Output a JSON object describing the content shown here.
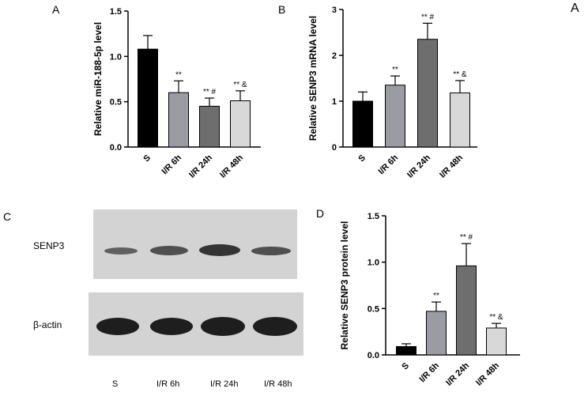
{
  "panel_letters": {
    "a": "A",
    "b": "B",
    "c": "C",
    "d": "D",
    "corner": "A"
  },
  "blot": {
    "row_labels": [
      "SENP3",
      "β-actin"
    ],
    "lane_labels": [
      "S",
      "I/R 6h",
      "I/R 24h",
      "I/R 48h"
    ],
    "colors": {
      "membrane": "#d3d3d3",
      "band": "#2b2b2b"
    }
  },
  "colors": {
    "S": "#000000",
    "IR6": "#9b9ba3",
    "IR24": "#6e6e6e",
    "IR48": "#d8d8d8"
  },
  "chart_data": [
    {
      "id": "A",
      "type": "bar",
      "categories": [
        "S",
        "I/R 6h",
        "I/R 24h",
        "I/R 48h"
      ],
      "values": [
        1.08,
        0.6,
        0.45,
        0.51
      ],
      "errors": [
        0.15,
        0.13,
        0.09,
        0.11
      ],
      "annotations": [
        "",
        "**",
        "** #",
        "** &"
      ],
      "ylabel": "Relative miR-188-5p level",
      "ylim": [
        0,
        1.5
      ],
      "yticks": [
        "0.0",
        "0.5",
        "1.0",
        "1.5"
      ],
      "grid": false
    },
    {
      "id": "B",
      "type": "bar",
      "categories": [
        "S",
        "I/R 6h",
        "I/R 24h",
        "I/R 48h"
      ],
      "values": [
        1.0,
        1.35,
        2.35,
        1.18
      ],
      "errors": [
        0.2,
        0.2,
        0.35,
        0.27
      ],
      "annotations": [
        "",
        "**",
        "** #",
        "** &"
      ],
      "ylabel": "Relative SENP3 mRNA level",
      "ylim": [
        0,
        3
      ],
      "yticks": [
        "0",
        "1",
        "2",
        "3"
      ],
      "grid": false
    },
    {
      "id": "D",
      "type": "bar",
      "categories": [
        "S",
        "I/R 6h",
        "I/R 24h",
        "I/R 48h"
      ],
      "values": [
        0.09,
        0.47,
        0.96,
        0.29
      ],
      "errors": [
        0.03,
        0.1,
        0.24,
        0.05
      ],
      "annotations": [
        "",
        "**",
        "** #",
        "** &"
      ],
      "ylabel": "Relative SENP3 protein level",
      "ylim": [
        0,
        1.5
      ],
      "yticks": [
        "0.0",
        "0.5",
        "1.0",
        "1.5"
      ],
      "grid": false
    }
  ]
}
